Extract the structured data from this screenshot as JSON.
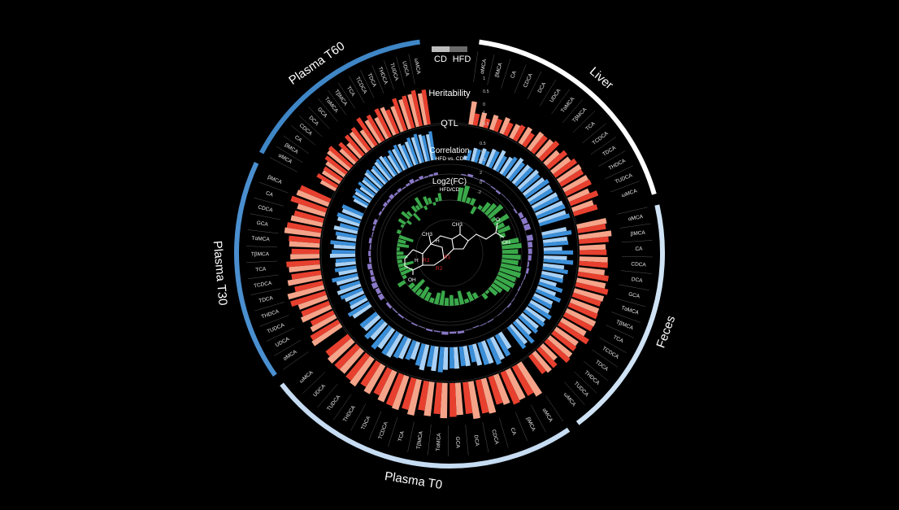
{
  "chart_data": {
    "type": "circos",
    "legend": {
      "items": [
        {
          "label": "CD",
          "color": "#bdbdbd"
        },
        {
          "label": "HFD",
          "color": "#6b6b6b"
        }
      ]
    },
    "track_labels": {
      "heritability": "Heritability",
      "qtl": "QTL",
      "correlation": "Correlation",
      "correlation_sub": "HFD vs. CD",
      "log2fc": "Log2(FC)",
      "log2fc_sub": "HFD/CD"
    },
    "axis_ticks": {
      "heritability": [
        "1",
        "0.5",
        "0"
      ],
      "qtl": [
        "1",
        "0.5"
      ],
      "correlation": [
        "0.5",
        "0",
        "-0.5"
      ],
      "log2fc": [
        "2",
        "0",
        "-2"
      ]
    },
    "structure_labels": [
      "CH3",
      "CH3",
      "H",
      "H",
      "OH",
      "OH",
      "R1",
      "R2",
      "R3",
      "O"
    ],
    "colors": {
      "cd_heritability": "#f5a48a",
      "hfd_heritability": "#e8402f",
      "qtl_cd": "#a9d1f5",
      "qtl_hfd": "#3b8fd9",
      "correlation": "#8a78c9",
      "log2fc": "#3aa94a",
      "structure_accent": "#e0262b"
    },
    "sectors": [
      {
        "name": "Liver",
        "arc_color": "#ffffff",
        "bile_acids": [
          "αMCA",
          "βMCA",
          "CA",
          "CDCA",
          "DCA",
          "UDCA",
          "TαMCA",
          "TβMCA",
          "TCA",
          "TCDCA",
          "TDCA",
          "THDCA",
          "TUDCA",
          "ωMCA"
        ],
        "heritability_cd": [
          0.55,
          0.34,
          0.36,
          0.4,
          0.36,
          0.44,
          0.5,
          0.51,
          0.43,
          0.53,
          0.63,
          0.64,
          0.53,
          0.52
        ],
        "heritability_hfd": [
          0.28,
          0.22,
          0.3,
          0.32,
          0.4,
          0.36,
          0.49,
          0.58,
          0.56,
          0.62,
          0.61,
          0.66,
          0.7,
          0.58
        ],
        "qtl_cd": [
          0.12,
          0.4,
          0.46,
          0.54,
          0.63,
          0.56,
          0.72,
          0.69,
          0.76,
          0.74,
          0.77,
          0.82,
          0.86,
          0.84
        ],
        "qtl_hfd": [
          0.31,
          0.39,
          0.42,
          0.53,
          0.5,
          0.64,
          0.64,
          0.7,
          0.71,
          0.82,
          0.76,
          0.81,
          0.88,
          0.92
        ],
        "correlation": [
          0.05,
          0.12,
          0.0,
          0.06,
          0.02,
          -0.05,
          -0.09,
          -0.02,
          -0.01,
          -0.02,
          -0.07,
          0.18,
          0.25,
          0.28
        ],
        "log2fc": [
          1.4,
          1.7,
          0.6,
          0.7,
          -0.8,
          0.4,
          1.1,
          1.4,
          1.8,
          0.5,
          1.7,
          0.9,
          1.3,
          0.6
        ]
      },
      {
        "name": "Feces",
        "arc_color": "#cfe3f5",
        "bile_acids": [
          "αMCA",
          "βMCA",
          "CA",
          "CDCA",
          "DCA",
          "GCA",
          "TαMCA",
          "TβMCA",
          "TCA",
          "TCDCA",
          "TDCA",
          "THDCA",
          "TUDCA",
          "ωMCA"
        ],
        "heritability_cd": [
          0.71,
          0.78,
          0.62,
          0.67,
          0.62,
          0.69,
          0.72,
          0.7,
          0.75,
          0.66,
          0.63,
          0.68,
          0.47,
          0.59
        ],
        "heritability_hfd": [
          0.67,
          0.7,
          0.64,
          0.68,
          0.73,
          0.78,
          0.69,
          0.72,
          0.74,
          0.81,
          0.66,
          0.72,
          0.59,
          0.53
        ],
        "qtl_cd": [
          0.73,
          0.71,
          0.54,
          0.68,
          0.62,
          0.64,
          0.5,
          0.57,
          0.59,
          0.63,
          0.66,
          0.62,
          0.58,
          0.7
        ],
        "qtl_hfd": [
          0.86,
          0.73,
          0.86,
          0.87,
          0.75,
          0.66,
          0.72,
          0.77,
          0.62,
          0.76,
          0.72,
          0.69,
          0.82,
          0.78
        ],
        "correlation": [
          0.28,
          0.21,
          0.18,
          0.15,
          0.07,
          0.11,
          0.04,
          -0.03,
          -0.05,
          -0.02,
          0.03,
          0.06,
          -0.01,
          0.02
        ],
        "log2fc": [
          1.8,
          2.0,
          1.6,
          1.9,
          1.7,
          2.1,
          2.2,
          1.9,
          2.0,
          1.8,
          1.2,
          1.0,
          0.3,
          0.6
        ]
      },
      {
        "name": "Plasma T0",
        "arc_color": "#c6dcf2",
        "bile_acids": [
          "αMCA",
          "βMCA",
          "CA",
          "CDCA",
          "DCA",
          "GCA",
          "TαMCA",
          "TβMCA",
          "TCA",
          "TCDCA",
          "TDCA",
          "THDCA",
          "TUDCA",
          "UDCA",
          "ωMCA"
        ],
        "heritability_cd": [
          0.89,
          0.78,
          0.74,
          0.84,
          0.89,
          0.76,
          0.83,
          0.81,
          0.86,
          0.83,
          0.78,
          0.76,
          0.79,
          0.71,
          0.74
        ],
        "heritability_hfd": [
          0.78,
          0.82,
          0.68,
          0.8,
          0.75,
          0.8,
          0.74,
          0.7,
          0.76,
          0.79,
          0.68,
          0.66,
          0.74,
          0.72,
          0.67
        ],
        "qtl_cd": [
          0.53,
          0.71,
          0.69,
          0.64,
          0.59,
          0.63,
          0.66,
          0.72,
          0.76,
          0.53,
          0.64,
          0.76,
          0.69,
          0.62,
          0.58
        ],
        "qtl_hfd": [
          0.7,
          0.8,
          0.68,
          0.51,
          0.57,
          0.62,
          0.74,
          0.62,
          0.66,
          0.59,
          0.68,
          0.77,
          0.81,
          0.72,
          0.6
        ],
        "correlation": [
          0.04,
          0.03,
          -0.04,
          0.02,
          0.11,
          0.09,
          0.14,
          0.05,
          0.08,
          0.03,
          0.06,
          0.02,
          0.07,
          0.05,
          0.12
        ],
        "log2fc": [
          -0.6,
          -1.0,
          -0.4,
          -1.4,
          -0.7,
          -1.1,
          -0.8,
          -1.5,
          -1.2,
          -0.5,
          -0.9,
          -1.3,
          -0.7,
          -1.6,
          -0.6
        ]
      },
      {
        "name": "Plasma T30",
        "arc_color": "#4a8fcf",
        "bile_acids": [
          "αMCA",
          "UDCA",
          "TUDCA",
          "THDCA",
          "TDCA",
          "TCDCA",
          "TCA",
          "TβMCA",
          "TαMCA",
          "GCA",
          "CDCA",
          "CA",
          "βMCA"
        ],
        "heritability_cd": [
          0.8,
          0.66,
          0.76,
          0.71,
          0.88,
          0.81,
          0.74,
          0.69,
          0.72,
          0.86,
          0.76,
          0.68,
          0.8
        ],
        "heritability_hfd": [
          0.76,
          0.59,
          0.7,
          0.86,
          0.68,
          0.7,
          0.79,
          0.66,
          0.74,
          0.82,
          0.71,
          0.88,
          0.77
        ],
        "qtl_cd": [
          0.62,
          0.55,
          0.59,
          0.72,
          0.66,
          0.54,
          0.6,
          0.74,
          0.63,
          0.57,
          0.7,
          0.66,
          0.61
        ],
        "qtl_hfd": [
          0.71,
          0.52,
          0.68,
          0.61,
          0.77,
          0.63,
          0.58,
          0.69,
          0.74,
          0.62,
          0.55,
          0.71,
          0.66
        ],
        "correlation": [
          0.22,
          0.19,
          0.25,
          0.18,
          0.14,
          0.2,
          0.09,
          0.11,
          0.06,
          0.12,
          0.04,
          0.08,
          0.15
        ],
        "log2fc": [
          0.8,
          -0.4,
          -1.3,
          -0.9,
          -1.6,
          -0.5,
          -1.1,
          -0.7,
          -0.3,
          -1.2,
          -0.8,
          -1.5,
          0.4
        ]
      },
      {
        "name": "Plasma T60",
        "arc_color": "#3f86c6",
        "bile_acids": [
          "αMCA",
          "βMCA",
          "CA",
          "CDCA",
          "DCA",
          "GCA",
          "TαMCA",
          "TβMCA",
          "TCA",
          "TCDCA",
          "TDCA",
          "THDCA",
          "TUDCA",
          "UDCA",
          "ωMCA"
        ],
        "heritability_cd": [
          0.4,
          0.48,
          0.53,
          0.66,
          0.47,
          0.45,
          0.6,
          0.49,
          0.62,
          0.56,
          0.71,
          0.64,
          0.73,
          0.79,
          0.76
        ],
        "heritability_hfd": [
          0.55,
          0.5,
          0.62,
          0.7,
          0.59,
          0.62,
          0.66,
          0.77,
          0.7,
          0.74,
          0.61,
          0.8,
          0.79,
          0.86,
          0.83
        ],
        "qtl_cd": [
          0.44,
          0.51,
          0.47,
          0.55,
          0.63,
          0.58,
          0.66,
          0.71,
          0.6,
          0.69,
          0.75,
          0.73,
          0.79,
          0.81,
          0.77
        ],
        "qtl_hfd": [
          0.52,
          0.56,
          0.6,
          0.57,
          0.66,
          0.62,
          0.7,
          0.64,
          0.72,
          0.78,
          0.68,
          0.82,
          0.86,
          0.76,
          0.84
        ],
        "correlation": [
          0.09,
          0.06,
          0.15,
          0.11,
          0.18,
          0.08,
          0.13,
          0.05,
          0.1,
          0.19,
          0.07,
          0.14,
          0.06,
          0.09,
          0.12
        ],
        "log2fc": [
          0.3,
          0.8,
          -0.5,
          1.0,
          0.6,
          -0.9,
          0.7,
          0.5,
          1.2,
          -0.4,
          0.9,
          0.6,
          -0.3,
          0.4,
          0.8
        ]
      }
    ]
  }
}
